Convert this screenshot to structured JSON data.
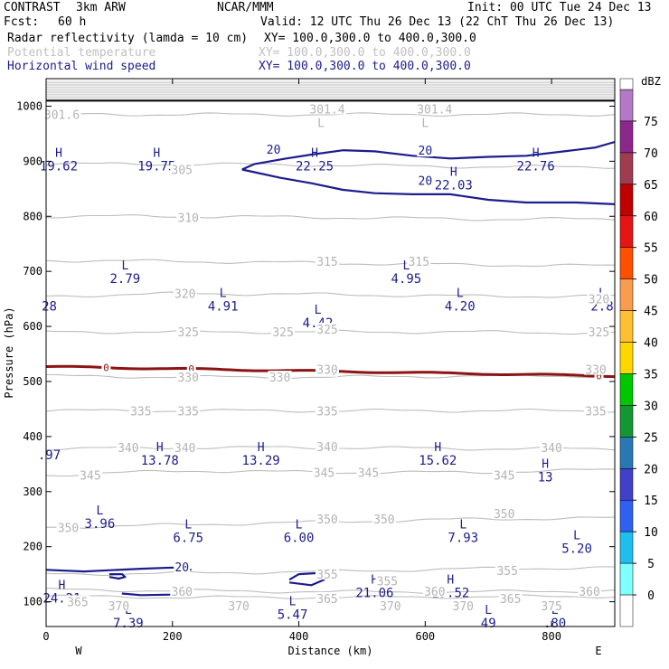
{
  "header": {
    "program": "CONTRAST",
    "model": "3km ARW",
    "org": "NCAR/MMM",
    "init": "Init: 00 UTC Tue 24 Dec 13",
    "fcst_label": "Fcst:",
    "fcst_value": "60 h",
    "valid": "Valid: 12 UTC Thu 26 Dec 13 (22 ChT Thu 26 Dec 13)",
    "fields": [
      {
        "name": "Radar reflectivity (lamda = 10 cm)",
        "xy": "XY= 100.0,300.0 to 400.0,300.0",
        "color": "#000000"
      },
      {
        "name": "Potential temperature",
        "xy": "XY= 100.0,300.0 to 400.0,300.0",
        "color": "#c0c0c0"
      },
      {
        "name": "Horizontal wind speed",
        "xy": "XY= 100.0,300.0 to 400.0,300.0",
        "color": "#1c1c8c"
      }
    ]
  },
  "chart_data": {
    "type": "contour",
    "xlabel": "Distance (km)",
    "ylabel": "Pressure (hPa)",
    "xlim": [
      0,
      900
    ],
    "ylim": [
      1050,
      55
    ],
    "xticks": [
      0,
      200,
      400,
      600,
      800
    ],
    "yticks": [
      100,
      200,
      300,
      400,
      500,
      600,
      700,
      800,
      900,
      1000
    ],
    "end_labels": {
      "left": "W",
      "right": "E"
    },
    "theta_contours": [
      {
        "value": 365,
        "p": [
          110,
          108,
          108,
          109,
          110
        ]
      },
      {
        "value": 360,
        "p": [
          122,
          120,
          118,
          118,
          120
        ]
      },
      {
        "value": 355,
        "p": [
          150,
          152,
          155,
          160,
          162
        ]
      },
      {
        "value": 350,
        "p": [
          235,
          240,
          245,
          250,
          252
        ]
      },
      {
        "value": 345,
        "p": [
          330,
          338,
          335,
          335,
          340
        ]
      },
      {
        "value": 340,
        "p": [
          378,
          380,
          380,
          378,
          378
        ]
      },
      {
        "value": 335,
        "p": [
          447,
          447,
          447,
          447,
          447
        ]
      },
      {
        "value": 330,
        "p": [
          510,
          508,
          508,
          510,
          510
        ]
      },
      {
        "value": 325,
        "p": [
          590,
          590,
          590,
          590,
          588
        ]
      },
      {
        "value": 320,
        "p": [
          655,
          660,
          658,
          655,
          655
        ]
      },
      {
        "value": 315,
        "p": [
          720,
          718,
          715,
          712,
          710
        ]
      },
      {
        "value": 310,
        "p": [
          800,
          800,
          798,
          795,
          795
        ]
      },
      {
        "value": 305,
        "p": [
          895,
          895,
          893,
          890,
          890
        ]
      },
      {
        "value": 301.6,
        "p": [
          985,
          985,
          985,
          985,
          985
        ]
      }
    ],
    "theta_labels": [
      {
        "text": "365",
        "x": 50,
        "p": 100
      },
      {
        "text": "370",
        "x": 115,
        "p": 93
      },
      {
        "text": "370",
        "x": 305,
        "p": 93
      },
      {
        "text": "365",
        "x": 445,
        "p": 106
      },
      {
        "text": "370",
        "x": 545,
        "p": 93
      },
      {
        "text": "370",
        "x": 660,
        "p": 93
      },
      {
        "text": "365",
        "x": 735,
        "p": 106
      },
      {
        "text": "375",
        "x": 800,
        "p": 93
      },
      {
        "text": "360",
        "x": 615,
        "p": 119
      },
      {
        "text": "360",
        "x": 860,
        "p": 119
      },
      {
        "text": "360",
        "x": 215,
        "p": 119
      },
      {
        "text": "355",
        "x": 445,
        "p": 150
      },
      {
        "text": "355",
        "x": 730,
        "p": 157
      },
      {
        "text": "355",
        "x": 540,
        "p": 138
      },
      {
        "text": "350",
        "x": 35,
        "p": 235
      },
      {
        "text": "350",
        "x": 445,
        "p": 250
      },
      {
        "text": "350",
        "x": 535,
        "p": 250
      },
      {
        "text": "350",
        "x": 725,
        "p": 260
      },
      {
        "text": "345",
        "x": 70,
        "p": 330
      },
      {
        "text": "345",
        "x": 440,
        "p": 335
      },
      {
        "text": "345",
        "x": 510,
        "p": 335
      },
      {
        "text": "345",
        "x": 725,
        "p": 330
      },
      {
        "text": "340",
        "x": 130,
        "p": 380
      },
      {
        "text": "340",
        "x": 220,
        "p": 380
      },
      {
        "text": "340",
        "x": 445,
        "p": 382
      },
      {
        "text": "340",
        "x": 800,
        "p": 380
      },
      {
        "text": "335",
        "x": 150,
        "p": 447
      },
      {
        "text": "335",
        "x": 225,
        "p": 447
      },
      {
        "text": "335",
        "x": 445,
        "p": 447
      },
      {
        "text": "335",
        "x": 870,
        "p": 447
      },
      {
        "text": "330",
        "x": 225,
        "p": 508
      },
      {
        "text": "330",
        "x": 370,
        "p": 508
      },
      {
        "text": "330",
        "x": 870,
        "p": 522
      },
      {
        "text": "330",
        "x": 445,
        "p": 522
      },
      {
        "text": "325",
        "x": 225,
        "p": 590
      },
      {
        "text": "325",
        "x": 375,
        "p": 590
      },
      {
        "text": "325",
        "x": 875,
        "p": 590
      },
      {
        "text": "325",
        "x": 445,
        "p": 595
      },
      {
        "text": "320",
        "x": 220,
        "p": 660
      },
      {
        "text": "320",
        "x": 875,
        "p": 650
      },
      {
        "text": "315",
        "x": 445,
        "p": 718
      },
      {
        "text": "315",
        "x": 590,
        "p": 718
      },
      {
        "text": "310",
        "x": 225,
        "p": 798
      },
      {
        "text": "305",
        "x": 215,
        "p": 885
      },
      {
        "text": "301.6",
        "x": 25,
        "p": 985
      },
      {
        "text": "301.4",
        "x": 445,
        "p": 995
      },
      {
        "text": "301.4",
        "x": 615,
        "p": 995
      }
    ],
    "theta_extrema": [
      {
        "text": "L",
        "x": 435,
        "p": 970
      },
      {
        "text": "L",
        "x": 600,
        "p": 970
      }
    ],
    "freezing_line": {
      "p_left": 527,
      "p_right": 510,
      "labels": [
        {
          "text": "0",
          "x": 95
        },
        {
          "text": "0",
          "x": 230
        },
        {
          "text": "0",
          "x": 455
        },
        {
          "text": "0",
          "x": 875
        }
      ]
    },
    "wind_contour_label": "20",
    "wind_labels": [
      {
        "x": 215,
        "p": 163
      },
      {
        "x": 360,
        "p": 922
      },
      {
        "x": 600,
        "p": 865
      },
      {
        "x": 600,
        "p": 920
      }
    ],
    "wind_extrema": [
      {
        "type": "L",
        "x": 130,
        "p": 75,
        "value": "7.39"
      },
      {
        "type": "L",
        "x": 390,
        "p": 90,
        "value": "5.47"
      },
      {
        "type": "L",
        "x": 700,
        "p": 75,
        "value": "49"
      },
      {
        "type": "L",
        "x": 805,
        "p": 75,
        "value": ".80"
      },
      {
        "type": "H",
        "x": 25,
        "p": 120,
        "value": "24.21"
      },
      {
        "type": "H",
        "x": 520,
        "p": 130,
        "value": "21.06"
      },
      {
        "type": "H",
        "x": 640,
        "p": 130,
        "value": "19.52"
      },
      {
        "type": "L",
        "x": 85,
        "p": 255,
        "value": "3.96"
      },
      {
        "type": "L",
        "x": 225,
        "p": 230,
        "value": "6.75"
      },
      {
        "type": "L",
        "x": 400,
        "p": 230,
        "value": "6.00"
      },
      {
        "type": "L",
        "x": 660,
        "p": 230,
        "value": "7.93"
      },
      {
        "type": "L",
        "x": 840,
        "p": 210,
        "value": "5.20"
      },
      {
        "type": "H",
        "x": 180,
        "p": 370,
        "value": "13.78"
      },
      {
        "type": "H",
        "x": 340,
        "p": 370,
        "value": "13.29"
      },
      {
        "type": "H",
        "x": 620,
        "p": 370,
        "value": "15.62"
      },
      {
        "type": "H",
        "x": 790,
        "p": 340,
        "value": "13"
      },
      {
        "type": "",
        "x": 5,
        "p": 380,
        "value": ".97"
      },
      {
        "type": "L",
        "x": 430,
        "p": 620,
        "value": "4.42"
      },
      {
        "type": "L",
        "x": 280,
        "p": 650,
        "value": "4.91"
      },
      {
        "type": "L",
        "x": 655,
        "p": 650,
        "value": "4.20"
      },
      {
        "type": "L",
        "x": 880,
        "p": 650,
        "value": "2.8"
      },
      {
        "type": "",
        "x": 5,
        "p": 650,
        "value": "28"
      },
      {
        "type": "L",
        "x": 125,
        "p": 700,
        "value": "2.79"
      },
      {
        "type": "L",
        "x": 570,
        "p": 700,
        "value": "4.95"
      },
      {
        "type": "H",
        "x": 645,
        "p": 870,
        "value": "22.03"
      },
      {
        "type": "H",
        "x": 20,
        "p": 905,
        "value": "19.62"
      },
      {
        "type": "H",
        "x": 175,
        "p": 905,
        "value": "19.75"
      },
      {
        "type": "H",
        "x": 425,
        "p": 905,
        "value": "22.25"
      },
      {
        "type": "H",
        "x": 775,
        "p": 905,
        "value": "22.76"
      }
    ],
    "colorbar": {
      "unit": "dBZ",
      "levels": [
        0,
        5,
        10,
        15,
        20,
        25,
        30,
        35,
        40,
        45,
        50,
        55,
        60,
        65,
        70,
        75
      ],
      "colors": [
        "#ffffff",
        "#7fffff",
        "#1ebfef",
        "#3060ef",
        "#4040c8",
        "#2878b4",
        "#149632",
        "#00c800",
        "#ffd700",
        "#fec030",
        "#f89c50",
        "#ff5000",
        "#e61414",
        "#c00000",
        "#a03c50",
        "#8c288c",
        "#b478c8"
      ]
    }
  }
}
